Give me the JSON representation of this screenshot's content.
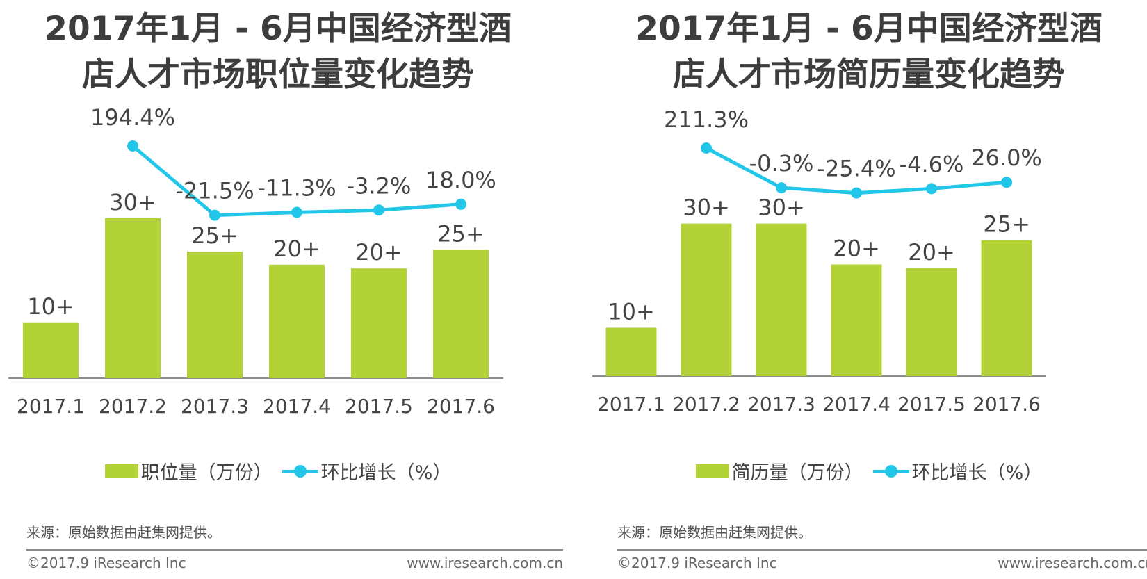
{
  "colors": {
    "bar": "#b3d235",
    "line": "#22c6e8",
    "text": "#444444",
    "title": "#3d3d3d",
    "axis": "#666666"
  },
  "chart_data": [
    {
      "type": "bar+line",
      "title_line1": "2017年1月 - 6月中国经济型酒",
      "title_line2": "店人才市场职位量变化趋势",
      "categories": [
        "2017.1",
        "2017.2",
        "2017.3",
        "2017.4",
        "2017.5",
        "2017.6"
      ],
      "bar_series": {
        "name": "职位量（万份）",
        "values": [
          15,
          43,
          34,
          30.5,
          29.5,
          34.5
        ],
        "labels": [
          "10+",
          "30+",
          "25+",
          "20+",
          "20+",
          "25+"
        ]
      },
      "line_series": {
        "name": "环比增长（%）",
        "values": [
          194.4,
          -21.5,
          -11.3,
          -3.2,
          18.0
        ],
        "labels": [
          "194.4%",
          "-21.5%",
          "-11.3%",
          "-3.2%",
          "18.0%"
        ],
        "start_category": "2017.2"
      },
      "ylim": [
        0,
        72
      ],
      "legend": "bottom-center",
      "source": "来源：原始数据由赶集网提供。",
      "copyright": "©2017.9 iResearch Inc",
      "site": "www.iresearch.com.cn"
    },
    {
      "type": "bar+line",
      "title_line1": "2017年1月 - 6月中国经济型酒",
      "title_line2": "店人才市场简历量变化趋势",
      "categories": [
        "2017.1",
        "2017.2",
        "2017.3",
        "2017.4",
        "2017.5",
        "2017.6"
      ],
      "bar_series": {
        "name": "简历量（万份）",
        "values": [
          13,
          41,
          41,
          30,
          29,
          36.5
        ],
        "labels": [
          "10+",
          "30+",
          "30+",
          "20+",
          "20+",
          "25+"
        ]
      },
      "line_series": {
        "name": "环比增长（%）",
        "values": [
          211.3,
          -0.3,
          -25.4,
          -4.6,
          26.0
        ],
        "labels": [
          "211.3%",
          "-0.3%",
          "-25.4%",
          "-4.6%",
          "26.0%"
        ],
        "start_category": "2017.2"
      },
      "ylim": [
        0,
        72
      ],
      "legend": "bottom-center",
      "source": "来源：原始数据由赶集网提供。",
      "copyright": "©2017.9 iResearch Inc",
      "site": "www.iresearch.com.cn"
    }
  ]
}
